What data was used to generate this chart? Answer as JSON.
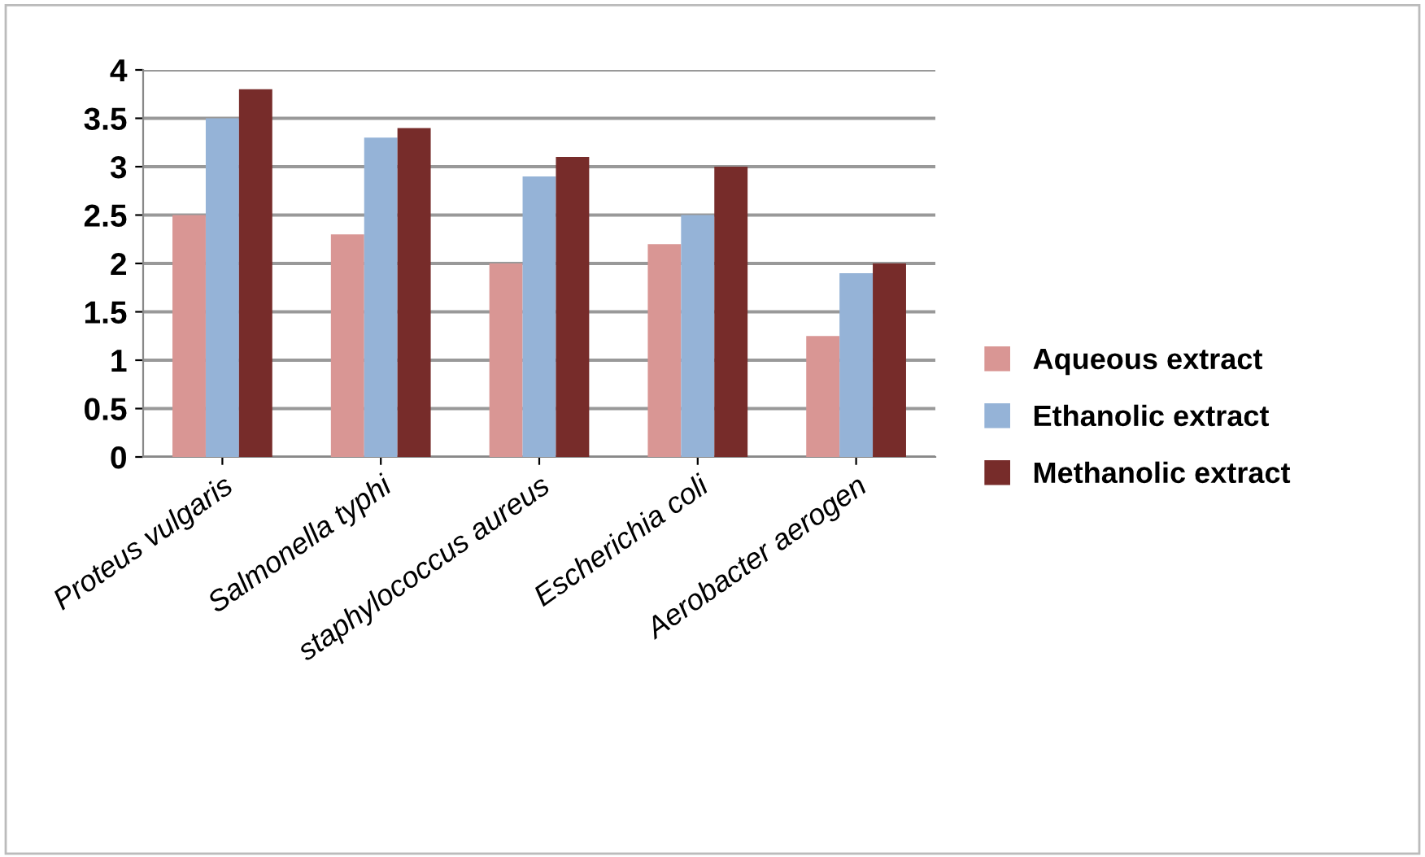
{
  "chart_data": {
    "type": "bar",
    "categories": [
      "Proteus vulgaris",
      "Salmonella typhi",
      "staphylococcus aureus",
      "Escherichia coli",
      "Aerobacter aerogen"
    ],
    "series": [
      {
        "name": "Aqueous extract",
        "color": "#d99694",
        "values": [
          2.5,
          2.3,
          2.0,
          2.2,
          1.25
        ]
      },
      {
        "name": "Ethanolic extract",
        "color": "#95b3d7",
        "values": [
          3.5,
          3.3,
          2.9,
          2.5,
          1.9
        ]
      },
      {
        "name": "Methanolic extract",
        "color": "#772c2a",
        "values": [
          3.8,
          3.4,
          3.1,
          3.0,
          2.0
        ]
      }
    ],
    "ylim": [
      0,
      4
    ],
    "yticks": [
      0,
      0.5,
      1,
      1.5,
      2,
      2.5,
      3,
      3.5,
      4
    ],
    "grid": "y",
    "legend": "right"
  }
}
